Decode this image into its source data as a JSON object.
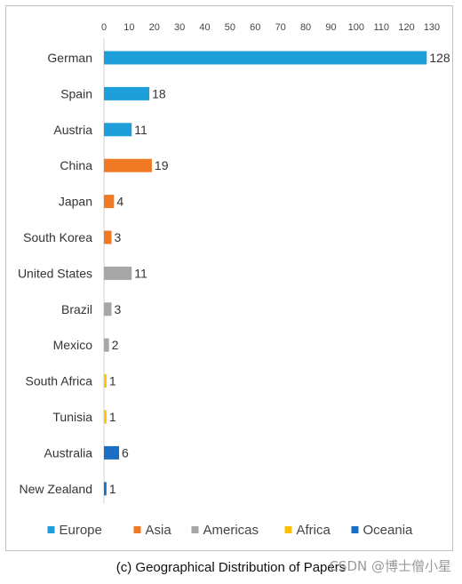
{
  "caption": "(c) Geographical Distribution of Papers",
  "watermark": "CSDN @博士僧小星",
  "chart_data": {
    "type": "bar",
    "orientation": "horizontal",
    "title": "",
    "xlabel": "",
    "ylabel": "",
    "xlim": [
      0,
      130
    ],
    "x_ticks": [
      0,
      10,
      20,
      30,
      40,
      50,
      60,
      70,
      80,
      90,
      100,
      110,
      120,
      130
    ],
    "x_axis_position": "top",
    "grid": false,
    "legend_position": "bottom",
    "categories": [
      "German",
      "Spain",
      "Austria",
      "China",
      "Japan",
      "South Korea",
      "United States",
      "Brazil",
      "Mexico",
      "South Africa",
      "Tunisia",
      "Australia",
      "New Zealand"
    ],
    "values": [
      128,
      18,
      11,
      19,
      4,
      3,
      11,
      3,
      2,
      1,
      1,
      6,
      1
    ],
    "groups": [
      "Europe",
      "Europe",
      "Europe",
      "Asia",
      "Asia",
      "Asia",
      "Americas",
      "Americas",
      "Americas",
      "Africa",
      "Africa",
      "Oceania",
      "Oceania"
    ],
    "legend": [
      {
        "name": "Europe",
        "color": "#1f9fd9"
      },
      {
        "name": "Asia",
        "color": "#f07a23"
      },
      {
        "name": "Americas",
        "color": "#a6a6a6"
      },
      {
        "name": "Africa",
        "color": "#ffc000"
      },
      {
        "name": "Oceania",
        "color": "#1a6fc4"
      }
    ]
  }
}
